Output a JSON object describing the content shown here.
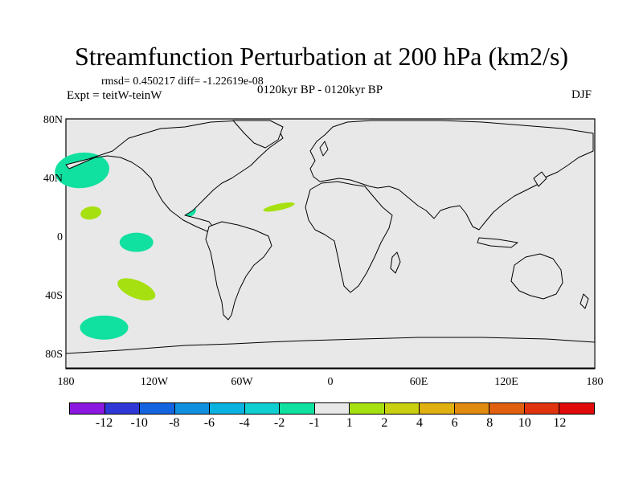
{
  "header": {
    "title": "Streamfunction Perturbation at 200 hPa (km2/s)",
    "stats": "rmsd= 0.450217 diff= -1.22619e-08",
    "experiment": "Expt = teitW-teinW",
    "period": "0120kyr BP - 0120kyr BP",
    "season": "DJF"
  },
  "map": {
    "lat_labels": [
      "80N",
      "40N",
      "0",
      "40S",
      "80S"
    ],
    "lon_labels": [
      "180",
      "120W",
      "60W",
      "0",
      "60E",
      "120E",
      "180"
    ],
    "ocean_color": "#e8e8e8",
    "coast_color": "#000000"
  },
  "colorbar": {
    "labels": [
      "-12",
      "-10",
      "-8",
      "-6",
      "-4",
      "-2",
      "-1",
      "1",
      "2",
      "4",
      "6",
      "8",
      "10",
      "12"
    ],
    "colors": [
      "#8a18e0",
      "#2f38d6",
      "#1464e0",
      "#1290e0",
      "#0ab2e0",
      "#10cfd0",
      "#10e0a0",
      "#e8e8e8",
      "#a6e010",
      "#c8d010",
      "#e0b010",
      "#e08a10",
      "#e06010",
      "#e03410",
      "#e00a0a"
    ]
  },
  "anomalies": [
    {
      "name": "north-pacific-negative",
      "lon": -169,
      "lat": 50,
      "color": "#10e0a0"
    },
    {
      "name": "subtropical-pacific-positive",
      "lon": -163,
      "lat": 21,
      "color": "#a6e010"
    },
    {
      "name": "gulf-of-mexico-negative",
      "lon": -98,
      "lat": 23,
      "color": "#10e0a0"
    },
    {
      "name": "central-atlantic-positive",
      "lon": -35,
      "lat": 25,
      "color": "#a6e010"
    },
    {
      "name": "equatorial-pacific-negative",
      "lon": -132,
      "lat": 1,
      "color": "#10e0a0"
    },
    {
      "name": "south-pacific-positive",
      "lon": -132,
      "lat": -31,
      "color": "#a6e010"
    },
    {
      "name": "southern-pacific-negative",
      "lon": -154,
      "lat": -57,
      "color": "#10e0a0"
    }
  ]
}
